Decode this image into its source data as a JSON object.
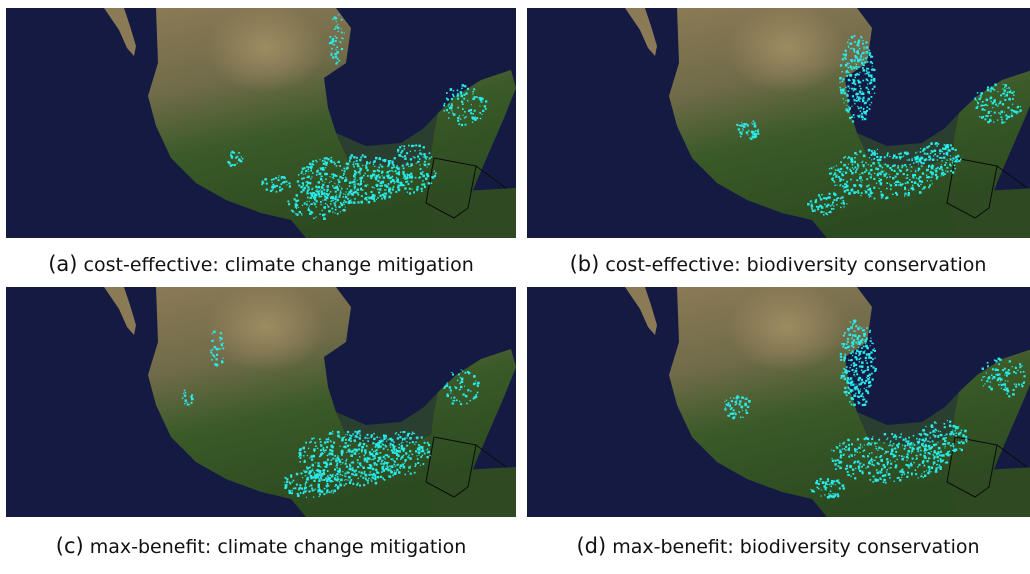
{
  "figure": {
    "panels": [
      {
        "label": "(a)",
        "caption": "cost-effective: climate change mitigation",
        "scenario": "cost-effective",
        "objective": "climate change mitigation"
      },
      {
        "label": "(b)",
        "caption": "cost-effective: biodiversity conservation",
        "scenario": "cost-effective",
        "objective": "biodiversity conservation"
      },
      {
        "label": "(c)",
        "caption": "max-benefit: climate change mitigation",
        "scenario": "max-benefit",
        "objective": "climate change mitigation"
      },
      {
        "label": "(d)",
        "caption": "max-benefit: biodiversity conservation",
        "scenario": "max-benefit",
        "objective": "biodiversity conservation"
      }
    ]
  },
  "colors": {
    "ocean": "#141a42",
    "land_green": "#3a5a28",
    "land_dry": "#8c7a56",
    "highlight": "#28ecec",
    "border": "#0b0b0b"
  },
  "icons": [
    "satellite-map-image"
  ]
}
